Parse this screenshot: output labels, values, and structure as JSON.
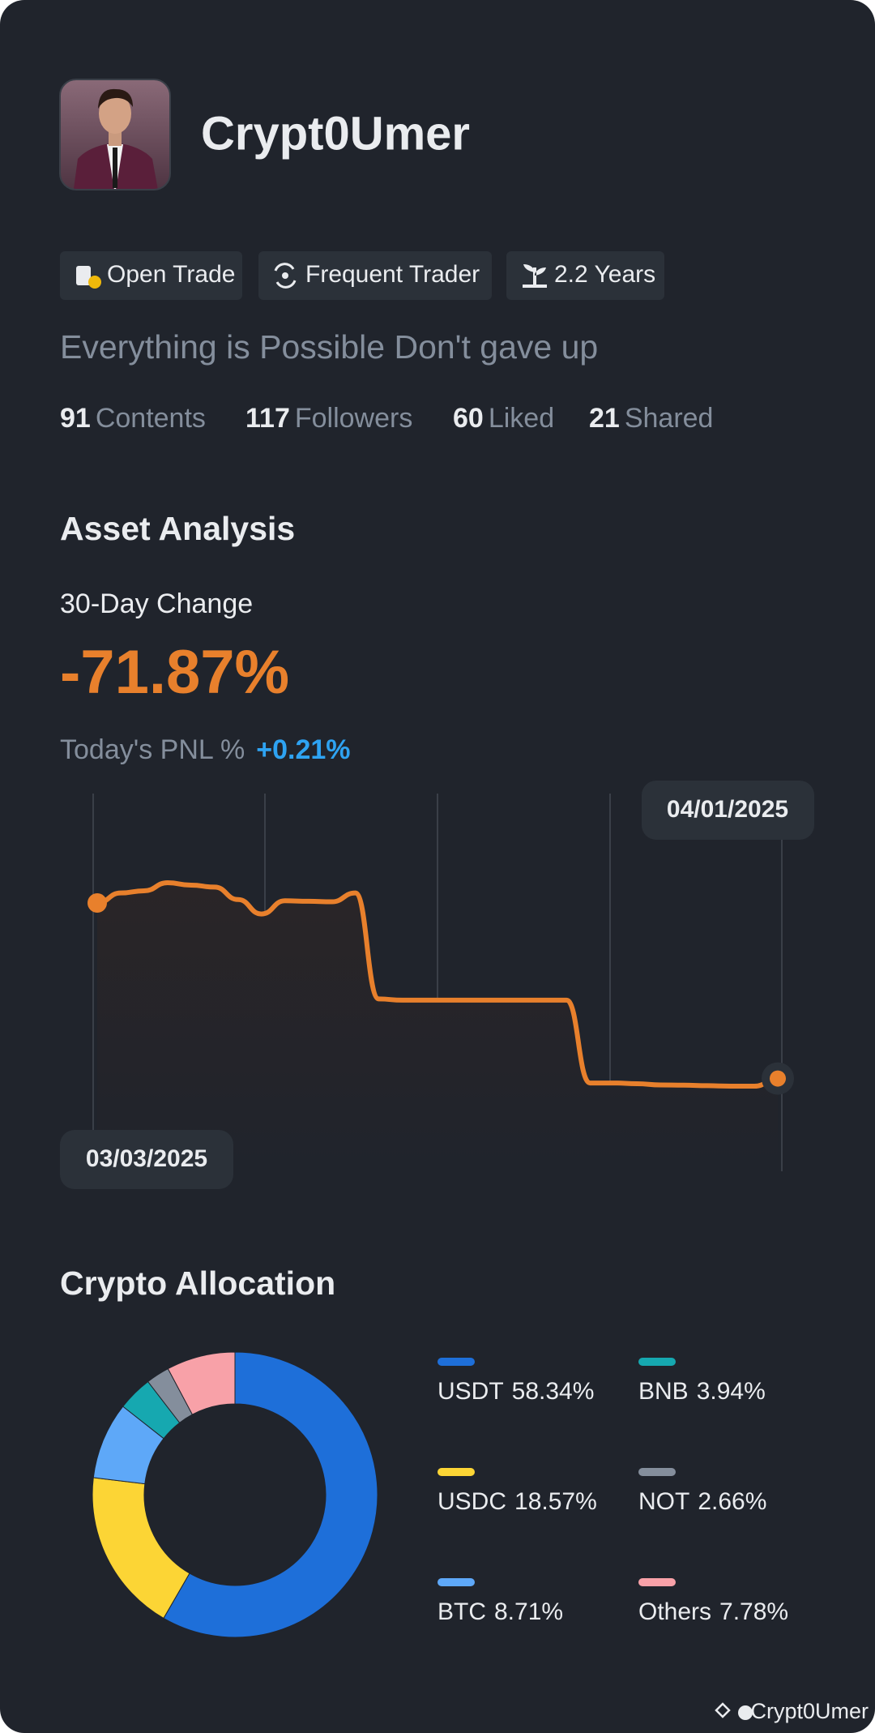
{
  "profile": {
    "name": "Crypt0Umer",
    "tags": [
      "Open Trade",
      "Frequent Trader",
      "2.2 Years"
    ],
    "bio": "Everything is Possible Don't gave up",
    "stats": [
      {
        "value": 91,
        "label": "Contents"
      },
      {
        "value": 117,
        "label": "Followers"
      },
      {
        "value": 60,
        "label": "Liked"
      },
      {
        "value": 21,
        "label": "Shared"
      }
    ]
  },
  "asset_analysis": {
    "title": "Asset Analysis",
    "change_label": "30-Day Change",
    "change_value": "-71.87%",
    "pnl_label": "Today's PNL %",
    "pnl_value": "+0.21%"
  },
  "chart_data": [
    {
      "type": "line",
      "color": "#e8802c",
      "x": [
        "03/03/2025",
        null,
        null,
        null,
        null,
        null,
        null,
        null,
        null,
        null,
        null,
        null,
        null,
        null,
        null,
        null,
        null,
        null,
        null,
        null,
        null,
        null,
        null,
        null,
        null,
        null,
        null,
        null,
        null,
        "04/01/2025"
      ],
      "values": [
        100,
        104.1,
        105,
        108.3,
        107.3,
        106.5,
        101.4,
        95.5,
        100.9,
        100.7,
        100.5,
        104.1,
        60.7,
        60.2,
        60.2,
        60.2,
        60.2,
        60.2,
        60.2,
        60.2,
        60.2,
        26.3,
        26.3,
        26,
        25.5,
        25.4,
        25.2,
        25,
        25,
        28.13
      ]
    },
    {
      "type": "pie",
      "title": "Crypto Allocation",
      "categories": [
        "USDT",
        "USDC",
        "BTC",
        "BNB",
        "NOT",
        "Others"
      ],
      "values": [
        58.34,
        18.57,
        8.71,
        3.94,
        2.66,
        7.78
      ],
      "value_labels": [
        "58.34%",
        "18.57%",
        "8.71%",
        "3.94%",
        "2.66%",
        "7.78%"
      ],
      "colors": [
        "#1e6fd9",
        "#fcd535",
        "#5ea8f8",
        "#16a8b0",
        "#848e9c",
        "#f8a1a8"
      ]
    }
  ],
  "watermark": "Crypt0Umer"
}
